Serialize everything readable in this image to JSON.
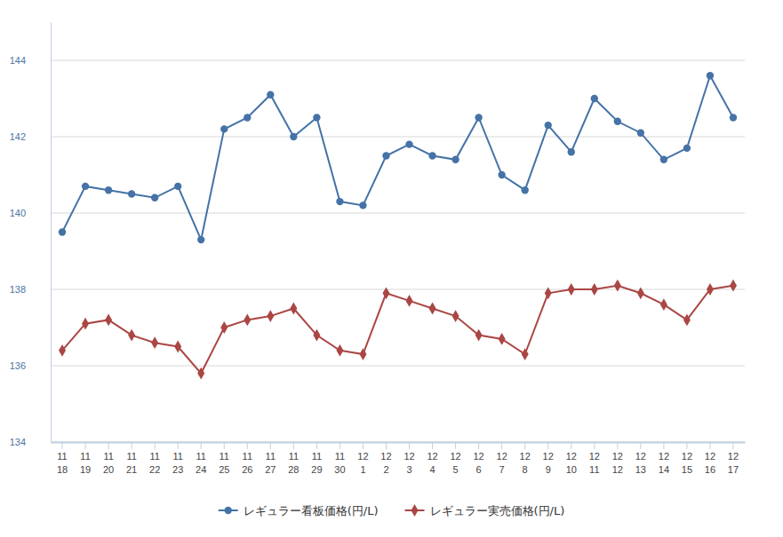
{
  "chart_data": {
    "type": "line",
    "categories": [
      "11\n18",
      "11\n19",
      "11\n20",
      "11\n21",
      "11\n22",
      "11\n23",
      "11\n24",
      "11\n25",
      "11\n26",
      "11\n27",
      "11\n28",
      "11\n29",
      "11\n30",
      "12\n1",
      "12\n2",
      "12\n3",
      "12\n4",
      "12\n5",
      "12\n6",
      "12\n7",
      "12\n8",
      "12\n9",
      "12\n10",
      "12\n11",
      "12\n12",
      "12\n13",
      "12\n14",
      "12\n15",
      "12\n16",
      "12\n17"
    ],
    "series": [
      {
        "name": "レギュラー看板価格(円/L)",
        "color": "#4572a7",
        "marker": "circle",
        "values": [
          139.5,
          140.7,
          140.6,
          140.5,
          140.4,
          140.7,
          139.3,
          142.2,
          142.5,
          143.1,
          142.0,
          142.5,
          140.3,
          140.2,
          141.5,
          141.8,
          141.5,
          141.4,
          142.5,
          141.0,
          140.6,
          142.3,
          141.6,
          143.0,
          142.4,
          142.1,
          141.4,
          141.7,
          143.6,
          142.5
        ]
      },
      {
        "name": "レギュラー実売価格(円/L)",
        "color": "#aa4643",
        "marker": "diamond",
        "values": [
          136.4,
          137.1,
          137.2,
          136.8,
          136.6,
          136.5,
          135.8,
          137.0,
          137.2,
          137.3,
          137.5,
          136.8,
          136.4,
          136.3,
          137.9,
          137.7,
          137.5,
          137.3,
          136.8,
          136.7,
          136.3,
          137.9,
          138.0,
          138.0,
          138.1,
          137.9,
          137.6,
          137.2,
          138.0,
          138.1
        ]
      }
    ],
    "ylim": [
      134,
      145
    ],
    "yticks": [
      134,
      136,
      138,
      140,
      142,
      144
    ],
    "grid": true,
    "legend": "bottom"
  }
}
